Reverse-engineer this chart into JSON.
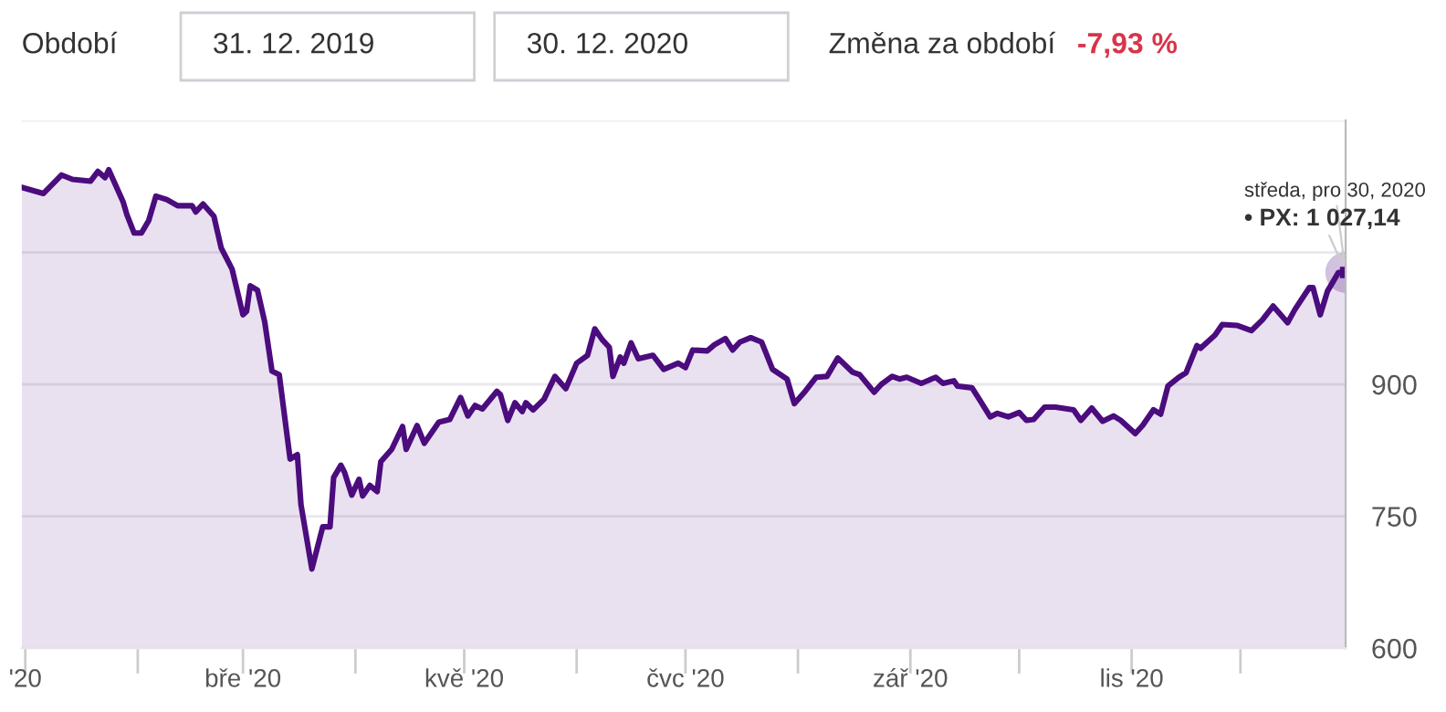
{
  "chart_data": {
    "type": "area",
    "x": [
      "2019-12-31",
      "2020-01-06",
      "2020-01-11",
      "2020-01-14",
      "2020-01-19",
      "2020-01-21",
      "2020-01-23",
      "2020-01-24",
      "2020-01-28",
      "2020-01-29",
      "2020-01-31",
      "2020-02-02",
      "2020-02-04",
      "2020-02-06",
      "2020-02-09",
      "2020-02-12",
      "2020-02-16",
      "2020-02-17",
      "2020-02-19",
      "2020-02-22",
      "2020-02-24",
      "2020-02-27",
      "2020-03-01",
      "2020-03-02",
      "2020-03-03",
      "2020-03-05",
      "2020-03-07",
      "2020-03-09",
      "2020-03-11",
      "2020-03-14",
      "2020-03-16",
      "2020-03-17",
      "2020-03-20",
      "2020-03-23",
      "2020-03-25",
      "2020-03-26",
      "2020-03-28",
      "2020-03-29",
      "2020-03-31",
      "2020-04-02",
      "2020-04-03",
      "2020-04-05",
      "2020-04-07",
      "2020-04-08",
      "2020-04-11",
      "2020-04-14",
      "2020-04-15",
      "2020-04-18",
      "2020-04-20",
      "2020-04-24",
      "2020-04-27",
      "2020-04-30",
      "2020-05-02",
      "2020-05-04",
      "2020-05-06",
      "2020-05-10",
      "2020-05-11",
      "2020-05-13",
      "2020-05-15",
      "2020-05-17",
      "2020-05-18",
      "2020-05-20",
      "2020-05-23",
      "2020-05-26",
      "2020-05-29",
      "2020-06-01",
      "2020-06-04",
      "2020-06-06",
      "2020-06-08",
      "2020-06-10",
      "2020-06-11",
      "2020-06-13",
      "2020-06-14",
      "2020-06-16",
      "2020-06-18",
      "2020-06-22",
      "2020-06-25",
      "2020-06-29",
      "2020-07-01",
      "2020-07-03",
      "2020-07-07",
      "2020-07-09",
      "2020-07-12",
      "2020-07-14",
      "2020-07-16",
      "2020-07-19",
      "2020-07-22",
      "2020-07-25",
      "2020-07-29",
      "2020-07-31",
      "2020-08-03",
      "2020-08-06",
      "2020-08-09",
      "2020-08-12",
      "2020-08-16",
      "2020-08-18",
      "2020-08-22",
      "2020-08-24",
      "2020-08-27",
      "2020-08-29",
      "2020-08-31",
      "2020-09-04",
      "2020-09-08",
      "2020-09-10",
      "2020-09-13",
      "2020-09-14",
      "2020-09-18",
      "2020-09-20",
      "2020-09-23",
      "2020-09-25",
      "2020-09-28",
      "2020-10-01",
      "2020-10-03",
      "2020-10-05",
      "2020-10-08",
      "2020-10-11",
      "2020-10-16",
      "2020-10-18",
      "2020-10-21",
      "2020-10-24",
      "2020-10-27",
      "2020-10-29",
      "2020-11-02",
      "2020-11-04",
      "2020-11-07",
      "2020-11-09",
      "2020-11-11",
      "2020-11-14",
      "2020-11-16",
      "2020-11-19",
      "2020-11-20",
      "2020-11-24",
      "2020-11-26",
      "2020-11-30",
      "2020-12-04",
      "2020-12-07",
      "2020-12-10",
      "2020-12-14",
      "2020-12-16",
      "2020-12-20",
      "2020-12-21",
      "2020-12-23",
      "2020-12-25",
      "2020-12-28",
      "2020-12-30"
    ],
    "series": [
      {
        "color": "#4b0c7e",
        "values": [
          1124,
          1117,
          1138,
          1133,
          1131,
          1142,
          1135,
          1144,
          1107,
          1093,
          1072,
          1072,
          1086,
          1114,
          1110,
          1103,
          1103,
          1096,
          1105,
          1091,
          1055,
          1031,
          979,
          983,
          1012,
          1007,
          971,
          915,
          911,
          815,
          820,
          763,
          690,
          738,
          738,
          794,
          808,
          800,
          774,
          792,
          773,
          785,
          778,
          812,
          826,
          852,
          826,
          853,
          833,
          857,
          860,
          885,
          864,
          876,
          872,
          892,
          888,
          859,
          879,
          869,
          879,
          871,
          883,
          909,
          895,
          924,
          933,
          963,
          951,
          942,
          909,
          931,
          924,
          947,
          929,
          933,
          917,
          924,
          919,
          939,
          938,
          945,
          952,
          939,
          948,
          953,
          948,
          917,
          906,
          878,
          892,
          908,
          909,
          930,
          914,
          911,
          891,
          900,
          909,
          906,
          908,
          901,
          908,
          901,
          904,
          898,
          896,
          883,
          863,
          867,
          863,
          868,
          859,
          860,
          874,
          874,
          871,
          859,
          873,
          858,
          864,
          859,
          844,
          853,
          871,
          866,
          898,
          908,
          913,
          944,
          941,
          956,
          968,
          967,
          961,
          973,
          989,
          970,
          985,
          1010,
          1010,
          979,
          1006,
          1027,
          1027.14
        ]
      }
    ],
    "xlim": [
      "2019-12-31",
      "2020-12-30"
    ],
    "xticks": [
      {
        "value": "2020-01-01",
        "label": "'20"
      },
      {
        "value": "2020-02-01",
        "label": null
      },
      {
        "value": "2020-03-01",
        "label": "bře '20"
      },
      {
        "value": "2020-04-01",
        "label": null
      },
      {
        "value": "2020-05-01",
        "label": "kvě '20"
      },
      {
        "value": "2020-06-01",
        "label": null
      },
      {
        "value": "2020-07-01",
        "label": "čvc '20"
      },
      {
        "value": "2020-08-01",
        "label": null
      },
      {
        "value": "2020-09-01",
        "label": "zář '20"
      },
      {
        "value": "2020-10-01",
        "label": null
      },
      {
        "value": "2020-11-01",
        "label": "lis '20"
      },
      {
        "value": "2020-12-01",
        "label": null
      }
    ],
    "ylim": [
      600,
      1200
    ],
    "yticks": [
      600,
      750,
      900,
      {
        "value": 1050,
        "label": null
      },
      {
        "value": 1200,
        "label": null
      }
    ],
    "grid": "y",
    "legend": false,
    "marker": "none",
    "line_style": "solid",
    "annotations": [
      "Období",
      "31. 12. 2019",
      "30. 12. 2020",
      "Změna za období",
      "-7,93 %",
      {
        "text": "středa, pro 30, 2020",
        "x": "2020-12-30",
        "y": 1027.14
      },
      {
        "text": "• PX: 1 027,14",
        "x": "2020-12-30",
        "y": 1027.14
      }
    ]
  }
}
